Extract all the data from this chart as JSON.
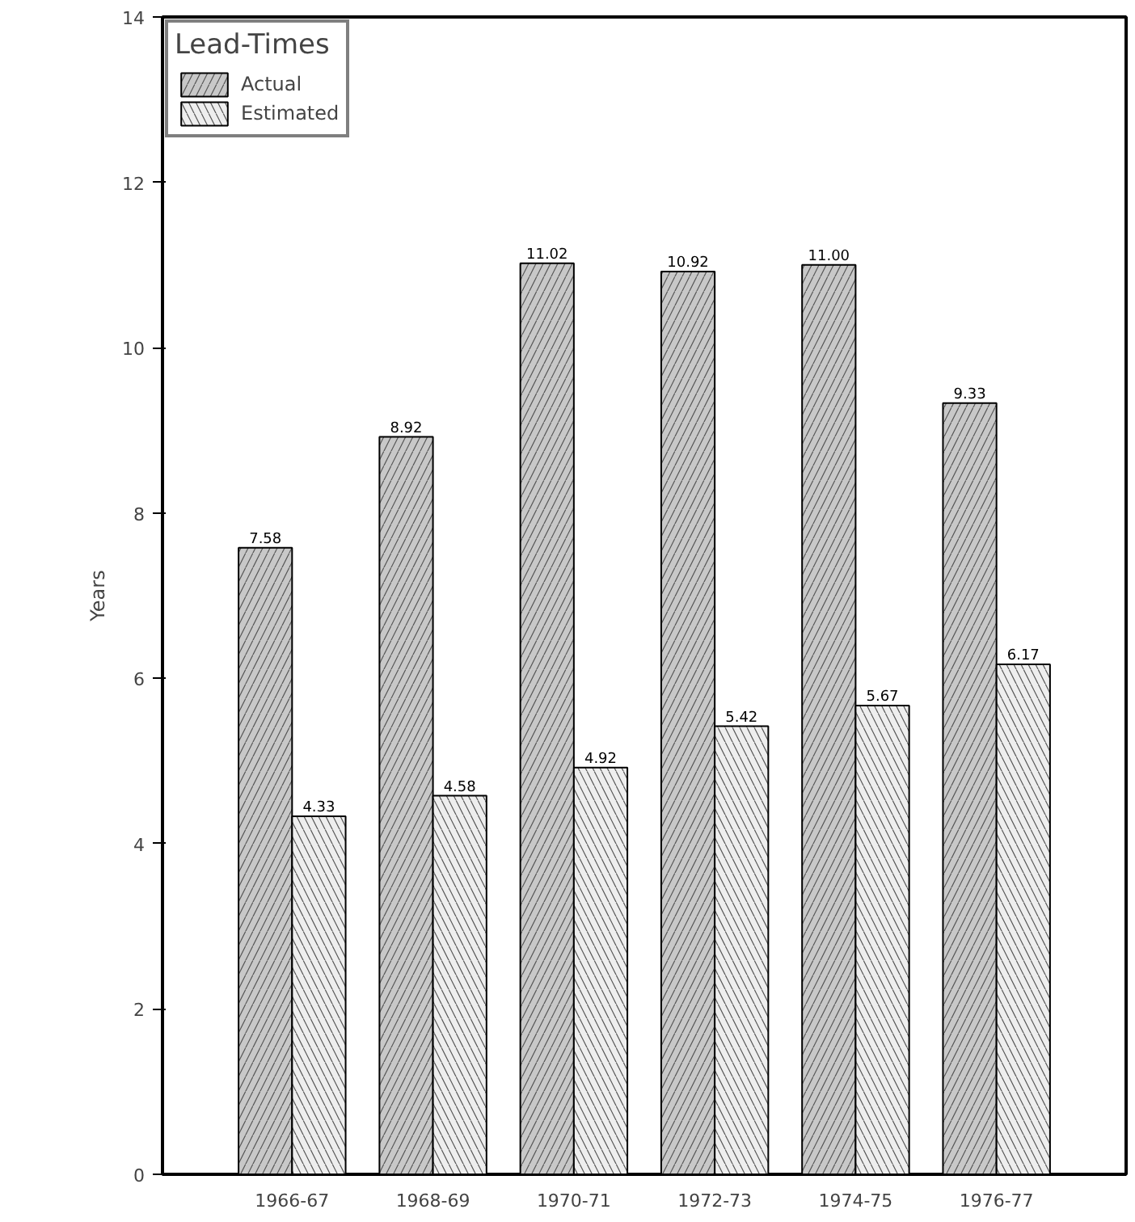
{
  "chart_data": {
    "type": "bar",
    "ylabel": "Years",
    "legend_title": "Lead-Times",
    "categories": [
      "1966-67",
      "1968-69",
      "1970-71",
      "1972-73",
      "1974-75",
      "1976-77"
    ],
    "series": [
      {
        "name": "Actual",
        "color": "#c8c8c8",
        "values": [
          7.58,
          8.92,
          11.02,
          10.92,
          11.0,
          9.33
        ],
        "value_labels": [
          "7.58",
          "8.92",
          "11.02",
          "10.92",
          "11.00",
          "9.33"
        ]
      },
      {
        "name": "Estimated",
        "color": "#eeeeee",
        "values": [
          4.33,
          4.58,
          4.92,
          5.42,
          5.67,
          6.17
        ],
        "value_labels": [
          "4.33",
          "4.58",
          "4.92",
          "5.42",
          "5.67",
          "6.17"
        ]
      }
    ],
    "ylim": [
      0,
      14
    ],
    "yticks": [
      0,
      2,
      4,
      6,
      8,
      10,
      12,
      14
    ],
    "grid": false,
    "legend": "top left"
  }
}
